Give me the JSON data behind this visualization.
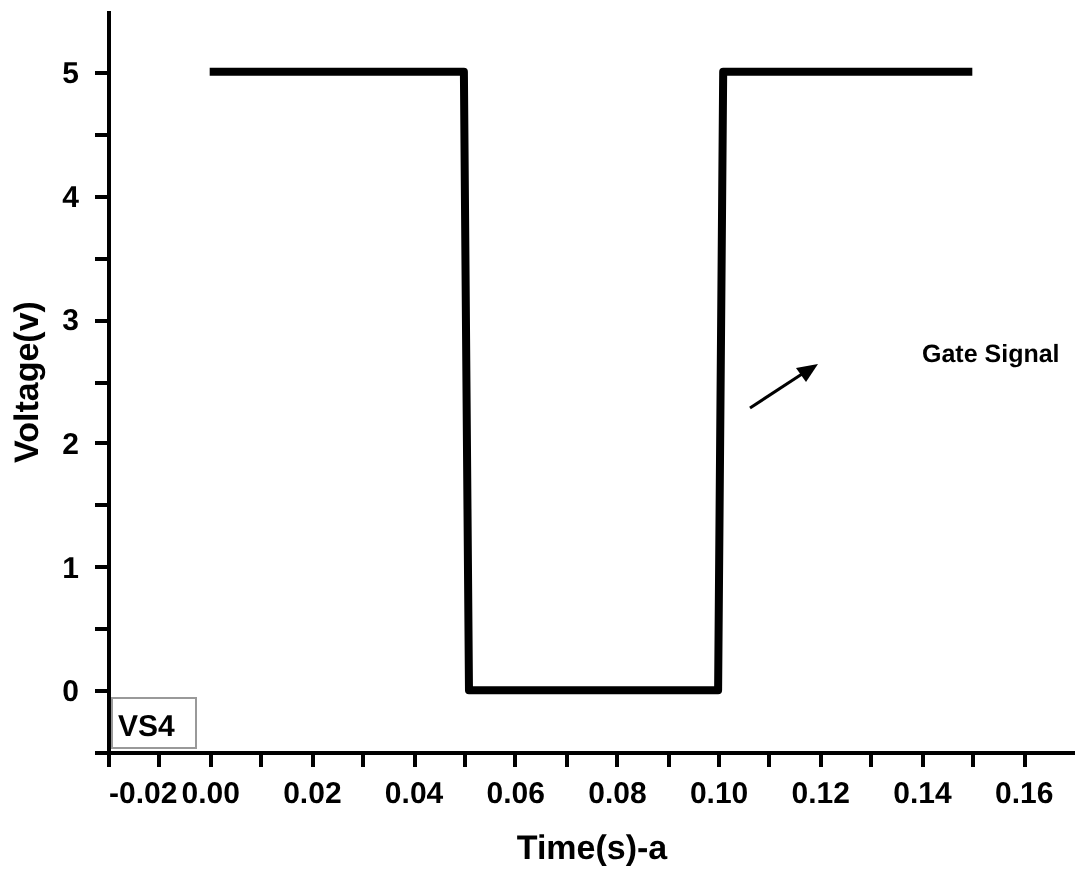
{
  "chart_data": {
    "type": "line",
    "xlabel": "Time(s)-a",
    "ylabel": "Voltage(v)",
    "annotations": [
      "Gate Signal",
      "VS4"
    ],
    "series": [
      {
        "color": "#000000",
        "x": [
          0,
          0.05,
          0.051,
          0.1,
          0.101,
          0.15
        ],
        "values": [
          5,
          5,
          0,
          0,
          5,
          5
        ]
      }
    ],
    "xlim": [
      -0.02,
      0.17
    ],
    "xticks": [
      -0.02,
      {
        "value": -0.01,
        "label": null
      },
      {
        "value": 0,
        "label": "0.00"
      },
      {
        "value": 0.01,
        "label": null
      },
      0.02,
      {
        "value": 0.03,
        "label": null
      },
      0.04,
      {
        "value": 0.05,
        "label": null
      },
      0.06,
      {
        "value": 0.07,
        "label": null
      },
      0.08,
      {
        "value": 0.09,
        "label": null
      },
      {
        "value": 0.1,
        "label": "0.10"
      },
      {
        "value": 0.11,
        "label": null
      },
      0.12,
      {
        "value": 0.13,
        "label": null
      },
      0.14,
      {
        "value": 0.15,
        "label": null
      },
      0.16
    ],
    "ylim": [
      -0.5,
      5.5
    ],
    "yticks": [
      {
        "value": -0.5,
        "label": null
      },
      0,
      {
        "value": 0.5,
        "label": null
      },
      1,
      {
        "value": 1.5,
        "label": null
      },
      2,
      {
        "value": 2.5,
        "label": null
      },
      3,
      {
        "value": 3.5,
        "label": null
      },
      4,
      {
        "value": 4.5,
        "label": null
      },
      5
    ],
    "grid": false,
    "marker": "none",
    "line_style": "solid"
  }
}
